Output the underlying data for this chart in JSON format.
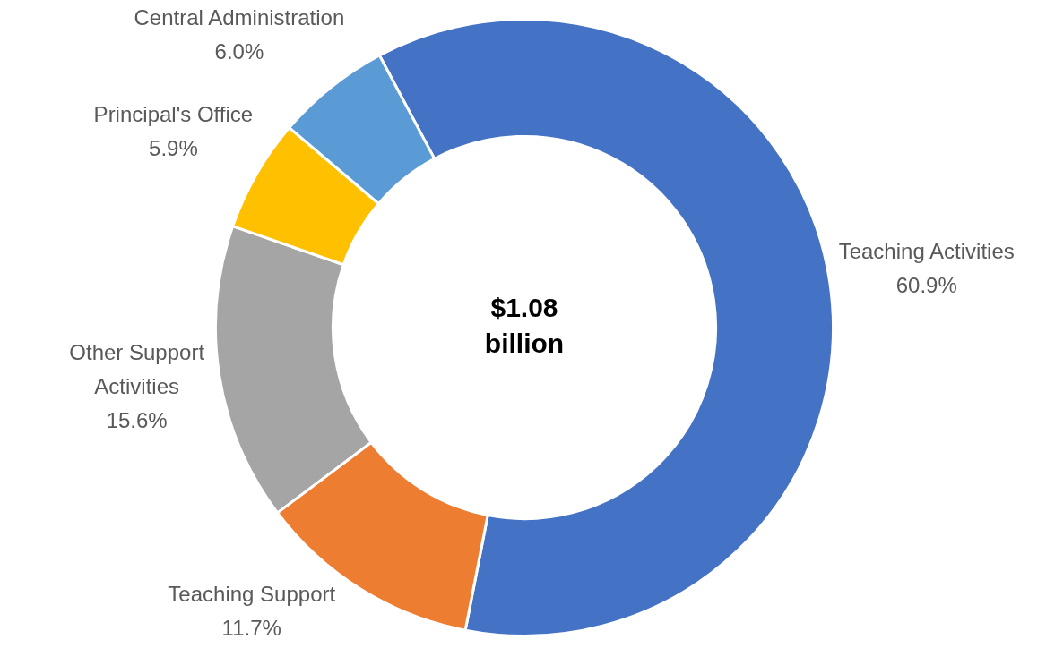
{
  "chart_data": {
    "type": "donut",
    "categories": [
      "Teaching Activities",
      "Teaching Support",
      "Other Support Activities",
      "Principal's Office",
      "Central Administration"
    ],
    "values": [
      60.9,
      11.7,
      15.6,
      5.9,
      6.0
    ],
    "value_labels": [
      "60.9%",
      "11.7%",
      "15.6%",
      "5.9%",
      "6.0%"
    ],
    "colors": [
      "#4472c4",
      "#ed7d31",
      "#a5a5a5",
      "#ffc000",
      "#5b9bd5"
    ],
    "annotations": [
      "$1.08 billion"
    ],
    "legend": false
  }
}
